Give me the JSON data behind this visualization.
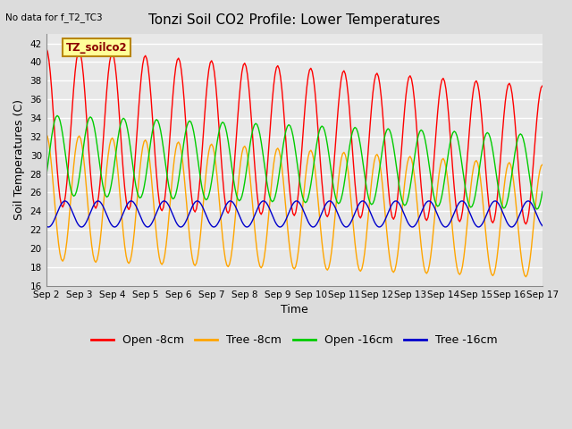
{
  "title": "Tonzi Soil CO2 Profile: Lower Temperatures",
  "top_left_text": "No data for f_T2_TC3",
  "legend_box_text": "TZ_soilco2",
  "xlabel": "Time",
  "ylabel": "Soil Temperatures (C)",
  "ylim": [
    16,
    43
  ],
  "yticks": [
    16,
    18,
    20,
    22,
    24,
    26,
    28,
    30,
    32,
    34,
    36,
    38,
    40,
    42
  ],
  "x_start_day": 2,
  "x_end_day": 17,
  "x_tick_days": [
    2,
    3,
    4,
    5,
    6,
    7,
    8,
    9,
    10,
    11,
    12,
    13,
    14,
    15,
    16,
    17
  ],
  "x_tick_labels": [
    "Sep 2",
    "Sep 3",
    "Sep 4",
    "Sep 5",
    "Sep 6",
    "Sep 7",
    "Sep 8",
    "Sep 9",
    "Sep 10",
    "Sep 11",
    "Sep 12",
    "Sep 13",
    "Sep 14",
    "Sep 15",
    "Sep 16",
    "Sep 17"
  ],
  "bg_color": "#DCDCDC",
  "plot_bg_color": "#E8E8E8",
  "grid_color": "#FFFFFF",
  "legend_box_color": "#FFFF99",
  "legend_box_edge": "#B8860B",
  "series_colors": [
    "#FF0000",
    "#FFA500",
    "#00CC00",
    "#0000CC"
  ],
  "series_labels": [
    "Open -8cm",
    "Tree -8cm",
    "Open -16cm",
    "Tree -16cm"
  ]
}
